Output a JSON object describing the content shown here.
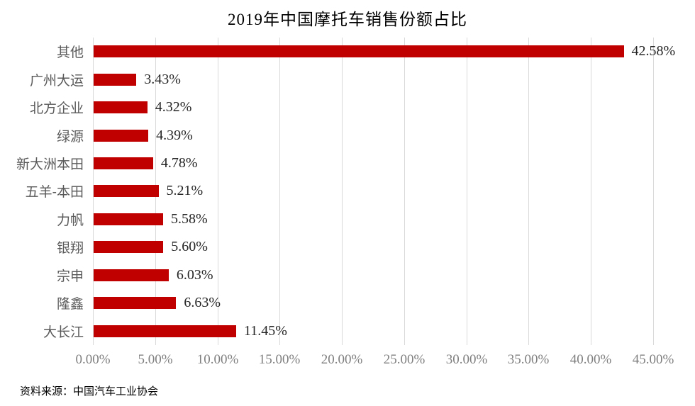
{
  "source_note": "资料来源：中国汽车工业协会",
  "chart_data": {
    "type": "bar",
    "orientation": "horizontal",
    "title": "2019年中国摩托车销售份额占比",
    "categories": [
      "其他",
      "广州大运",
      "北方企业",
      "绿源",
      "新大洲本田",
      "五羊-本田",
      "力帆",
      "银翔",
      "宗申",
      "隆鑫",
      "大长江"
    ],
    "values": [
      42.58,
      3.43,
      4.32,
      4.39,
      4.78,
      5.21,
      5.58,
      5.6,
      6.03,
      6.63,
      11.45
    ],
    "labels": [
      "42.58%",
      "3.43%",
      "4.32%",
      "4.39%",
      "4.78%",
      "5.21%",
      "5.58%",
      "5.60%",
      "6.03%",
      "6.63%",
      "11.45%"
    ],
    "x_ticks": [
      "0.00%",
      "5.00%",
      "10.00%",
      "15.00%",
      "20.00%",
      "25.00%",
      "30.00%",
      "35.00%",
      "40.00%",
      "45.00%"
    ],
    "xlim": [
      0,
      45
    ],
    "x_tick_step": 5,
    "bar_color": "#c00000",
    "gridline_color": "#d9d9d9",
    "grid": true,
    "legend": "none"
  }
}
